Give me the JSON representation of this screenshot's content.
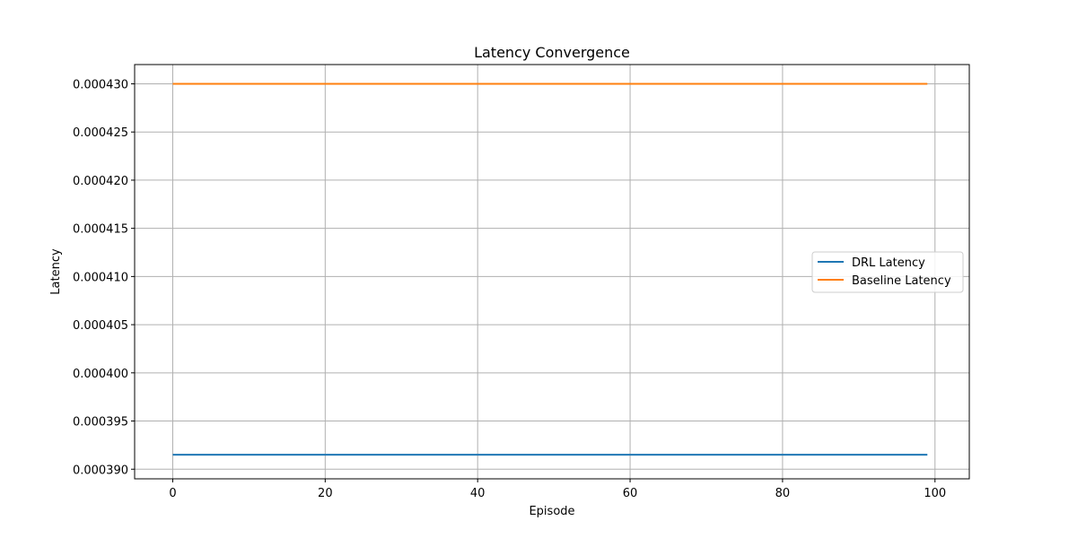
{
  "chart_data": {
    "type": "line",
    "title": "Latency Convergence",
    "xlabel": "Episode",
    "ylabel": "Latency",
    "xlim": [
      -5,
      104.5
    ],
    "ylim": [
      0.000389,
      0.000432
    ],
    "x_ticks": [
      0,
      20,
      40,
      60,
      80,
      100
    ],
    "y_ticks": [
      0.00039,
      0.000395,
      0.0004,
      0.000405,
      0.00041,
      0.000415,
      0.00042,
      0.000425,
      0.00043
    ],
    "x_tick_labels": [
      "0",
      "20",
      "40",
      "60",
      "80",
      "100"
    ],
    "y_tick_labels": [
      "0.000390",
      "0.000395",
      "0.000400",
      "0.000405",
      "0.000410",
      "0.000415",
      "0.000420",
      "0.000425",
      "0.000430"
    ],
    "grid": true,
    "legend_position": "center-right",
    "x_range": [
      0,
      99
    ],
    "series": [
      {
        "name": "DRL Latency",
        "color": "#1f77b4",
        "value": 0.0003915
      },
      {
        "name": "Baseline Latency",
        "color": "#ff7f0e",
        "value": 0.00043
      }
    ]
  }
}
